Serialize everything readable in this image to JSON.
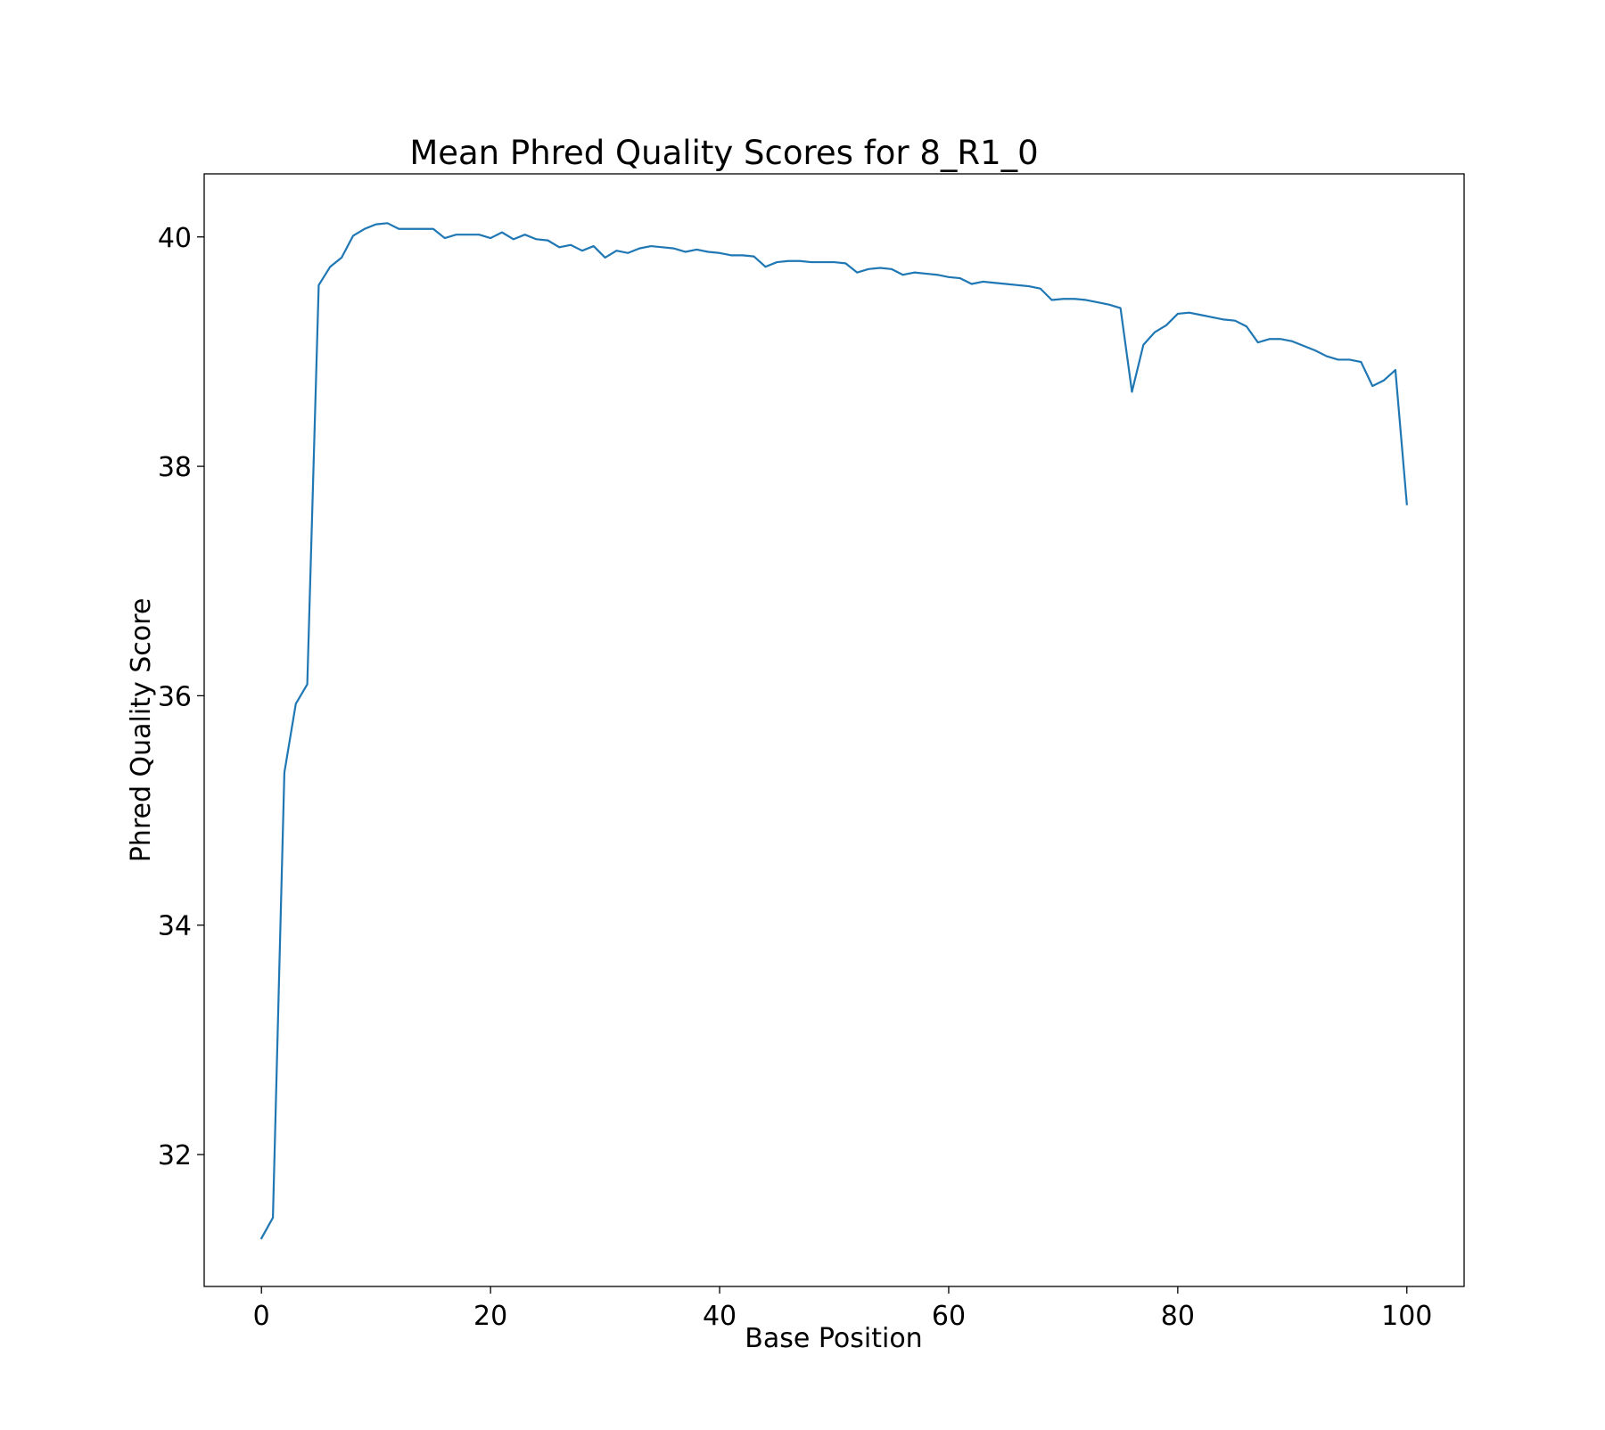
{
  "chart_data": {
    "type": "line",
    "title": "Mean Phred Quality Scores for 8_R1_0",
    "xlabel": "Base Position",
    "ylabel": "Phred Quality Score",
    "xlim": [
      -5,
      105
    ],
    "ylim": [
      30.85,
      40.55
    ],
    "x_ticks": [
      0,
      20,
      40,
      60,
      80,
      100
    ],
    "y_ticks": [
      32,
      34,
      36,
      38,
      40
    ],
    "grid": false,
    "legend": "none",
    "colors": {
      "line": "#1f77b4",
      "axes": "#000000",
      "background": "#ffffff"
    },
    "series": [
      {
        "x": [
          0,
          1,
          2,
          3,
          4,
          5,
          6,
          7,
          8,
          9,
          10,
          11,
          12,
          13,
          14,
          15,
          16,
          17,
          18,
          19,
          20,
          21,
          22,
          23,
          24,
          25,
          26,
          27,
          28,
          29,
          30,
          31,
          32,
          33,
          34,
          35,
          36,
          37,
          38,
          39,
          40,
          41,
          42,
          43,
          44,
          45,
          46,
          47,
          48,
          49,
          50,
          51,
          52,
          53,
          54,
          55,
          56,
          57,
          58,
          59,
          60,
          61,
          62,
          63,
          64,
          65,
          66,
          67,
          68,
          69,
          70,
          71,
          72,
          73,
          74,
          75,
          76,
          77,
          78,
          79,
          80,
          81,
          82,
          83,
          84,
          85,
          86,
          87,
          88,
          89,
          90,
          91,
          92,
          93,
          94,
          95,
          96,
          97,
          98,
          99,
          100
        ],
        "values": [
          31.27,
          31.45,
          35.33,
          35.93,
          36.1,
          39.58,
          39.74,
          39.82,
          40.01,
          40.07,
          40.11,
          40.12,
          40.07,
          40.07,
          40.07,
          40.07,
          39.99,
          40.02,
          40.02,
          40.02,
          39.99,
          40.04,
          39.98,
          40.02,
          39.98,
          39.97,
          39.91,
          39.93,
          39.88,
          39.92,
          39.82,
          39.88,
          39.86,
          39.9,
          39.92,
          39.91,
          39.9,
          39.87,
          39.89,
          39.87,
          39.86,
          39.84,
          39.84,
          39.83,
          39.74,
          39.78,
          39.79,
          39.79,
          39.78,
          39.78,
          39.78,
          39.77,
          39.69,
          39.72,
          39.73,
          39.72,
          39.67,
          39.69,
          39.68,
          39.67,
          39.65,
          39.64,
          39.59,
          39.61,
          39.6,
          39.59,
          39.58,
          39.57,
          39.55,
          39.45,
          39.46,
          39.46,
          39.45,
          39.43,
          39.41,
          39.38,
          38.65,
          39.06,
          39.17,
          39.23,
          39.33,
          39.34,
          39.32,
          39.3,
          39.28,
          39.27,
          39.22,
          39.08,
          39.11,
          39.11,
          39.09,
          39.05,
          39.01,
          38.96,
          38.93,
          38.93,
          38.91,
          38.7,
          38.75,
          38.84,
          37.67
        ]
      }
    ]
  }
}
